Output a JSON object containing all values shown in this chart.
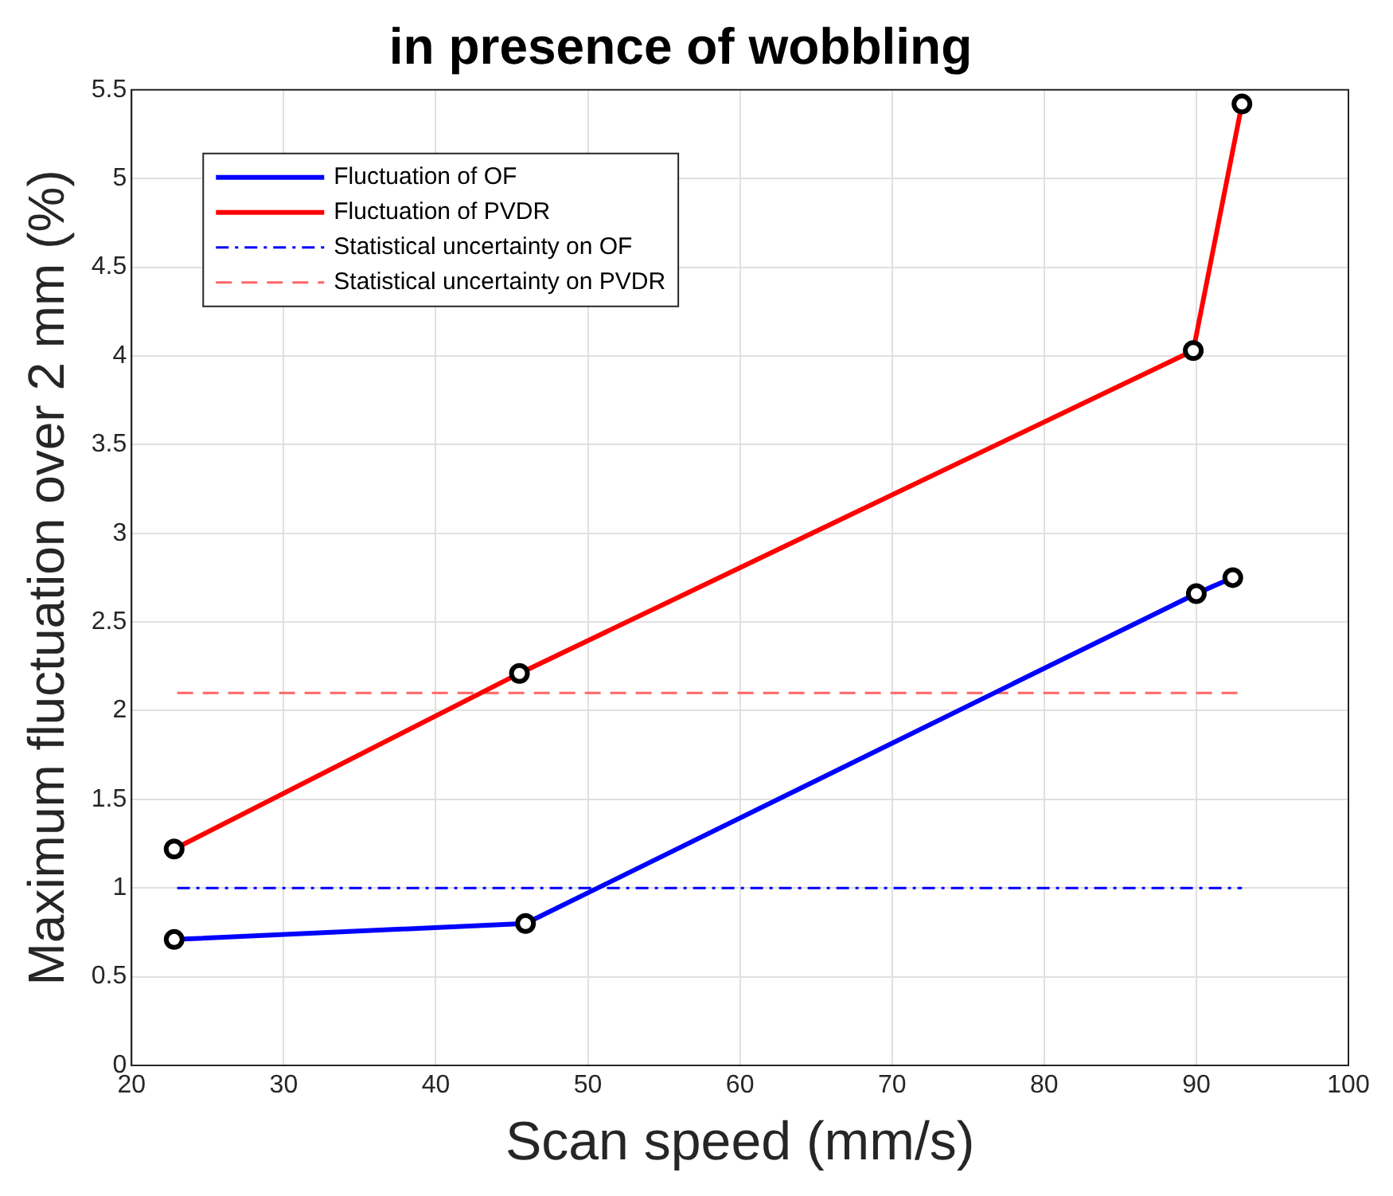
{
  "chart_data": {
    "type": "line",
    "title": "in presence of wobbling",
    "xlabel": "Scan speed (mm/s)",
    "ylabel": "Maximum fluctuation over 2 mm (%)",
    "xlim": [
      20,
      100
    ],
    "xticks": [
      20,
      30,
      40,
      50,
      60,
      70,
      80,
      90,
      100
    ],
    "ylim": [
      0,
      5.5
    ],
    "yticks": [
      0,
      0.5,
      1,
      1.5,
      2,
      2.5,
      3,
      3.5,
      4,
      4.5,
      5,
      5.5
    ],
    "grid": true,
    "legend": "top left",
    "series": [
      {
        "name": "Fluctuation of OF",
        "color": "#0000ff",
        "x": [
          22.8,
          45.9,
          90,
          92.4
        ],
        "values": [
          0.71,
          0.8,
          2.66,
          2.75
        ],
        "marker": "circle",
        "line_style": "solid"
      },
      {
        "name": "Fluctuation of PVDR",
        "color": "#ff0000",
        "x": [
          22.8,
          45.5,
          89.8,
          93
        ],
        "values": [
          1.22,
          2.21,
          4.03,
          5.42
        ],
        "marker": "circle",
        "line_style": "solid"
      },
      {
        "name": "Statistical uncertainty on OF",
        "color": "#0000ff",
        "x": [
          23,
          93
        ],
        "values": [
          1,
          1
        ],
        "marker": "none",
        "line_style": "dashdot"
      },
      {
        "name": "Statistical uncertainty on PVDR",
        "color": "#ff6666",
        "x": [
          23,
          93
        ],
        "values": [
          2.1,
          2.1
        ],
        "marker": "none",
        "line_style": "dashed"
      }
    ]
  }
}
